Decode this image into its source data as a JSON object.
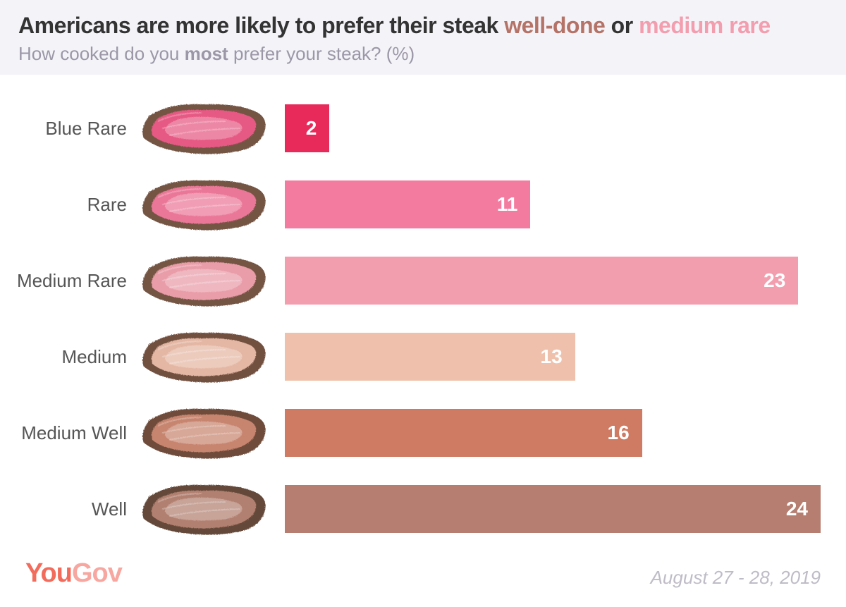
{
  "header": {
    "title_pre": "Americans are more likely to prefer their steak ",
    "hl1": "well-done",
    "mid": " or ",
    "hl2": "medium rare",
    "hl1_color": "#b57367",
    "hl2_color": "#f39eaf",
    "subtitle_pre": "How cooked do you ",
    "subtitle_bold": "most",
    "subtitle_post": " prefer your steak? (%)"
  },
  "chart": {
    "type": "bar",
    "max_value": 24,
    "value_color": "#ffffff",
    "value_fontsize": 28,
    "rows": [
      {
        "label": "Blue Rare",
        "value": 2,
        "bar_color": "#e82a5a",
        "crust": "#6e4b3a",
        "inner": "#f05a8a"
      },
      {
        "label": "Rare",
        "value": 11,
        "bar_color": "#f47ba0",
        "crust": "#6e4b3a",
        "inner": "#f47ba0"
      },
      {
        "label": "Medium Rare",
        "value": 23,
        "bar_color": "#f39eaf",
        "crust": "#6e4b3a",
        "inner": "#f3a4b2"
      },
      {
        "label": "Medium",
        "value": 13,
        "bar_color": "#efc1ac",
        "crust": "#6a4636",
        "inner": "#eec0ac"
      },
      {
        "label": "Medium Well",
        "value": 16,
        "bar_color": "#cf7a63",
        "crust": "#66412f",
        "inner": "#cf8a74"
      },
      {
        "label": "Well",
        "value": 24,
        "bar_color": "#b57e71",
        "crust": "#5d3e2f",
        "inner": "#b88676"
      }
    ]
  },
  "footer": {
    "logo_1": "You",
    "logo_2": "Gov",
    "date": "August 27 - 28, 2019"
  }
}
